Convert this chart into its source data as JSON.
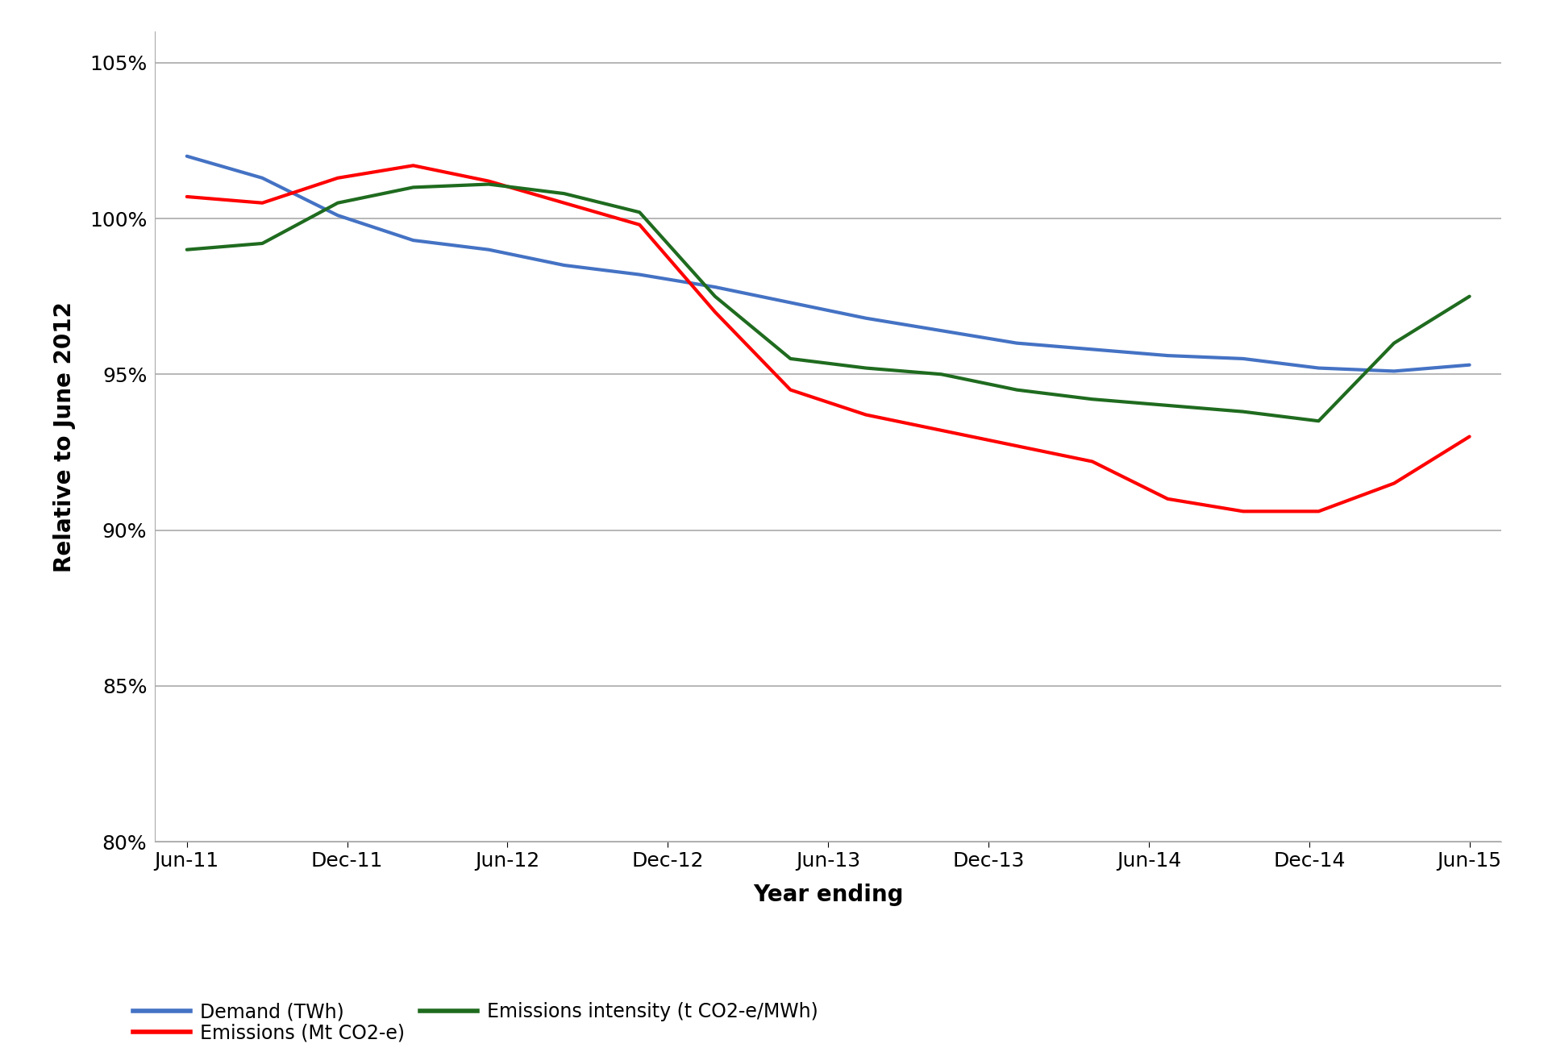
{
  "x_labels": [
    "Jun-11",
    "Dec-11",
    "Jun-12",
    "Dec-12",
    "Jun-13",
    "Dec-13",
    "Jun-14",
    "Dec-14",
    "Jun-15"
  ],
  "demand_twh": [
    102.0,
    101.3,
    100.1,
    99.3,
    99.0,
    98.5,
    98.2,
    97.8,
    97.3,
    96.8,
    96.4,
    96.0,
    95.8,
    95.6,
    95.5,
    95.2,
    95.1,
    95.3
  ],
  "emissions_mt": [
    100.7,
    100.5,
    101.3,
    101.7,
    101.2,
    100.5,
    99.8,
    97.0,
    94.5,
    93.7,
    93.2,
    92.7,
    92.2,
    91.0,
    90.6,
    90.6,
    91.5,
    93.0
  ],
  "emissions_intensity": [
    99.0,
    99.2,
    100.5,
    101.0,
    101.1,
    100.8,
    100.2,
    97.5,
    95.5,
    95.2,
    95.0,
    94.5,
    94.2,
    94.0,
    93.8,
    93.5,
    96.0,
    97.5
  ],
  "demand_color": "#4472C4",
  "emissions_color": "#FF0000",
  "intensity_color": "#1F6B1F",
  "line_width": 3.0,
  "ylabel": "Relative to June 2012",
  "xlabel": "Year ending",
  "ylim": [
    80,
    106
  ],
  "yticks": [
    80,
    85,
    90,
    95,
    100,
    105
  ],
  "legend_demand": "Demand (TWh)",
  "legend_emissions": "Emissions (Mt CO2-e)",
  "legend_intensity": "Emissions intensity (t CO2-e/MWh)",
  "grid_color": "#AAAAAA",
  "background_color": "#FFFFFF",
  "tick_fontsize": 18,
  "label_fontsize": 20
}
